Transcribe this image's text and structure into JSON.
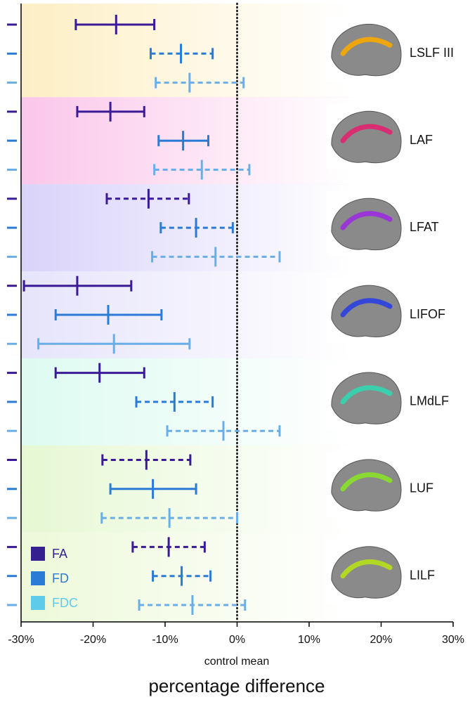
{
  "chart_data": {
    "type": "errorbar",
    "categories": [
      "LSLF III",
      "LAF",
      "LFAT",
      "LIFOF",
      "LMdLF",
      "LUF",
      "LILF"
    ],
    "category_colors": [
      "#fdefc4",
      "#fbc6ea",
      "#d9d3fa",
      "#e6e4fb",
      "#ddfbf1",
      "#e6f8d3",
      "#edf9d9"
    ],
    "xlabel": "control mean",
    "title": "percentage difference",
    "xlim": [
      -30,
      30
    ],
    "xticks": [
      {
        "value": -30,
        "label": "-30%"
      },
      {
        "value": -20,
        "label": "-20%"
      },
      {
        "value": -10,
        "label": "-10%"
      },
      {
        "value": 0,
        "label": "0%"
      },
      {
        "value": 10,
        "label": "10%"
      },
      {
        "value": 20,
        "label": "20%"
      },
      {
        "value": 30,
        "label": "30%"
      }
    ],
    "reference_line": 0,
    "legend": "bottom-left",
    "series": [
      {
        "name": "FA",
        "color": "#3a1a96",
        "legend_color": "#34208f",
        "values": [
          -16.8,
          -17.6,
          -12.3,
          -22.2,
          -19.1,
          -12.6,
          -9.5
        ],
        "lower": [
          -22.4,
          -22.2,
          -18.1,
          -29.6,
          -25.2,
          -18.7,
          -14.5
        ],
        "upper": [
          -11.5,
          -12.9,
          -6.7,
          -14.7,
          -12.9,
          -6.5,
          -4.5
        ],
        "dashed": [
          false,
          false,
          true,
          false,
          false,
          true,
          true
        ]
      },
      {
        "name": "FD",
        "color": "#2a7bd6",
        "legend_color": "#2a7bd6",
        "values": [
          -7.8,
          -7.5,
          -5.7,
          -17.9,
          -8.7,
          -11.7,
          -7.7
        ],
        "lower": [
          -12.0,
          -10.9,
          -10.6,
          -25.2,
          -14.0,
          -17.6,
          -11.7
        ],
        "upper": [
          -3.4,
          -4.0,
          -0.6,
          -10.5,
          -3.4,
          -5.7,
          -3.7
        ],
        "dashed": [
          true,
          false,
          true,
          false,
          true,
          false,
          true
        ]
      },
      {
        "name": "FDC",
        "color": "#6aaee8",
        "legend_color": "#5ecbea",
        "values": [
          -6.6,
          -4.9,
          -3.0,
          -17.1,
          -1.9,
          -9.4,
          -6.2
        ],
        "lower": [
          -11.3,
          -11.5,
          -11.8,
          -27.6,
          -9.7,
          -18.8,
          -13.6
        ],
        "upper": [
          0.9,
          1.7,
          5.9,
          -6.6,
          5.9,
          0.0,
          1.1
        ],
        "dashed": [
          true,
          true,
          true,
          false,
          true,
          true,
          true
        ]
      }
    ]
  }
}
